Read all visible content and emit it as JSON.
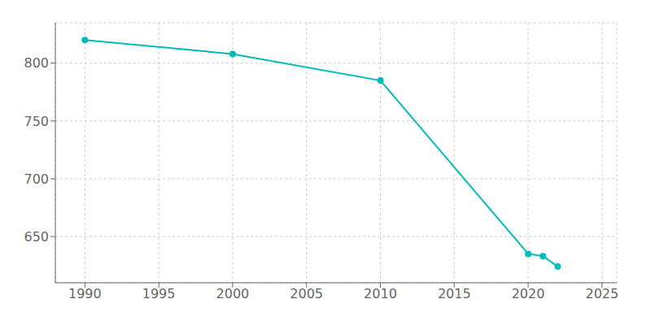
{
  "chart_data": {
    "type": "line",
    "x": [
      1990,
      2000,
      2010,
      2020,
      2021,
      2022
    ],
    "values": [
      820,
      808,
      785,
      635,
      633,
      624
    ],
    "color": "#00BBBB",
    "marker": "circle",
    "xlim": [
      1988,
      2026
    ],
    "ylim": [
      610,
      835
    ],
    "xticks": [
      1990,
      1995,
      2000,
      2005,
      2010,
      2015,
      2020,
      2025
    ],
    "yticks": [
      650,
      700,
      750,
      800
    ],
    "grid": true
  }
}
